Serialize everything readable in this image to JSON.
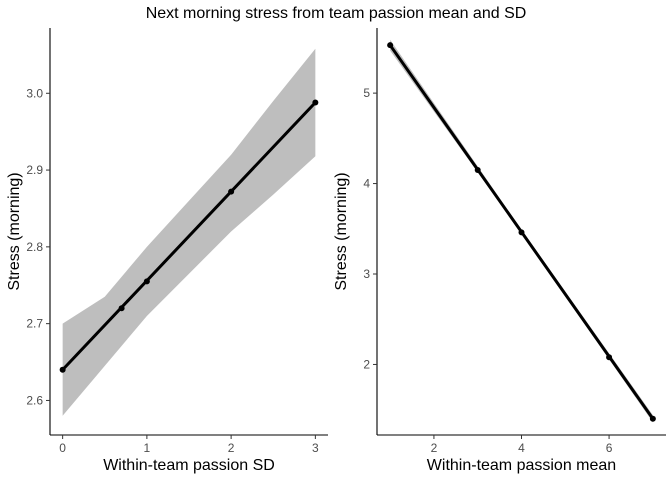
{
  "title": "Next morning stress from team passion mean and SD",
  "colors": {
    "line": "#000000",
    "ribbon": "#bebebe",
    "axis": "#000000",
    "tick_text": "#4d4d4d"
  },
  "chart_data": [
    {
      "type": "line",
      "panel": "left",
      "xlabel": "Within-team passion SD",
      "ylabel": "Stress (morning)",
      "xlim": [
        -0.15,
        3.15
      ],
      "ylim": [
        2.555,
        3.085
      ],
      "xticks": [
        0,
        1,
        2,
        3
      ],
      "xtick_labels": [
        "0",
        "1",
        "2",
        "3"
      ],
      "yticks": [
        2.6,
        2.7,
        2.8,
        2.9,
        3.0
      ],
      "ytick_labels": [
        "2.6",
        "2.7",
        "2.8",
        "2.9",
        "3.0"
      ],
      "grid": false,
      "line": {
        "x": [
          0,
          3
        ],
        "y": [
          2.64,
          2.988
        ]
      },
      "ribbon": {
        "x": [
          0,
          0.5,
          1,
          1.5,
          2,
          2.5,
          3
        ],
        "lower": [
          2.58,
          2.645,
          2.71,
          2.765,
          2.82,
          2.868,
          2.918
        ],
        "upper": [
          2.7,
          2.735,
          2.8,
          2.86,
          2.92,
          2.99,
          3.058
        ]
      },
      "points": {
        "x": [
          0,
          0.7,
          1,
          2,
          3
        ],
        "y": [
          2.64,
          2.72,
          2.755,
          2.872,
          2.988
        ]
      }
    },
    {
      "type": "line",
      "panel": "right",
      "xlabel": "Within-team passion mean",
      "ylabel": "Stress (morning)",
      "xlim": [
        0.7,
        7.3
      ],
      "ylim": [
        1.22,
        5.72
      ],
      "xticks": [
        2,
        4,
        6
      ],
      "xtick_labels": [
        "2",
        "4",
        "6"
      ],
      "yticks": [
        2,
        3,
        4,
        5
      ],
      "ytick_labels": [
        "2",
        "3",
        "4",
        "5"
      ],
      "grid": false,
      "line": {
        "x": [
          1,
          7
        ],
        "y": [
          5.53,
          1.4
        ]
      },
      "ribbon": {
        "x": [
          1,
          4,
          7
        ],
        "lower": [
          5.47,
          3.45,
          1.36
        ],
        "upper": [
          5.59,
          3.49,
          1.44
        ]
      },
      "points": {
        "x": [
          1,
          3,
          4,
          6,
          7
        ],
        "y": [
          5.53,
          4.15,
          3.46,
          2.08,
          1.4
        ]
      }
    }
  ]
}
